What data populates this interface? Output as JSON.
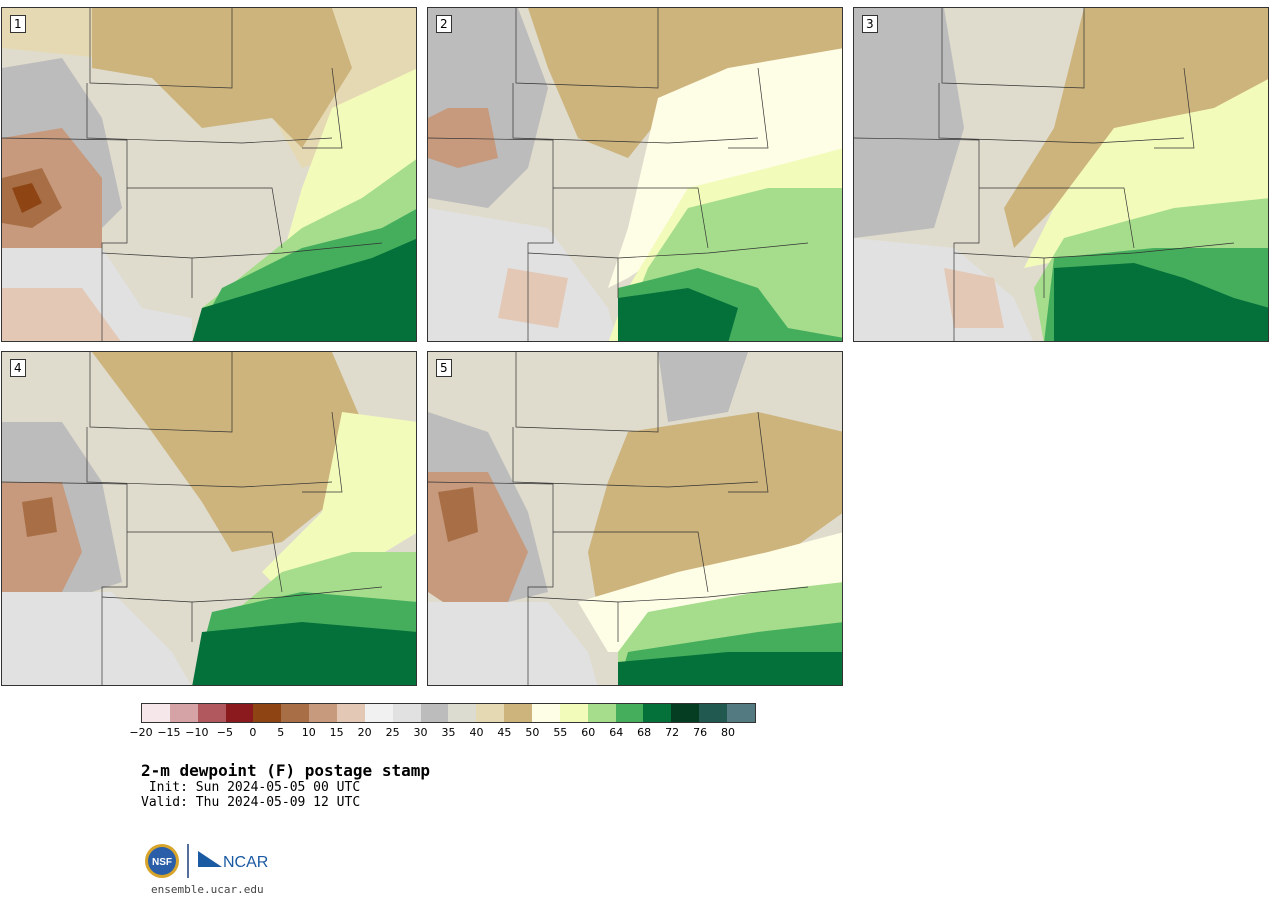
{
  "panels": [
    {
      "label": "1"
    },
    {
      "label": "2"
    },
    {
      "label": "3"
    },
    {
      "label": "4"
    },
    {
      "label": "5"
    }
  ],
  "colorbar": {
    "colors": [
      "#f6e8ea",
      "#d5a2a6",
      "#b0585e",
      "#8b1a1e",
      "#8e4513",
      "#a86f47",
      "#c79a7d",
      "#e3c8b5",
      "#f1f1f1",
      "#e1e1e1",
      "#bcbcbc",
      "#dddcd1",
      "#e5d9b3",
      "#cdb37c",
      "#fefde6",
      "#f3fbbb",
      "#a5dd8c",
      "#45ae5d",
      "#05713a",
      "#053d22",
      "#215850",
      "#527a80"
    ],
    "ticks": [
      "−20",
      "−15",
      "−10",
      "−5",
      "0",
      "5",
      "10",
      "15",
      "20",
      "25",
      "30",
      "35",
      "40",
      "45",
      "50",
      "55",
      "60",
      "64",
      "68",
      "72",
      "76",
      "80"
    ]
  },
  "title": "2-m dewpoint (F) postage stamp",
  "init_line": " Init: Sun 2024-05-05 00 UTC",
  "valid_line": "Valid: Thu 2024-05-09 12 UTC",
  "logos": {
    "nsf_text": "NSF",
    "ncar_text": "NCAR"
  },
  "site": "ensemble.ucar.edu"
}
